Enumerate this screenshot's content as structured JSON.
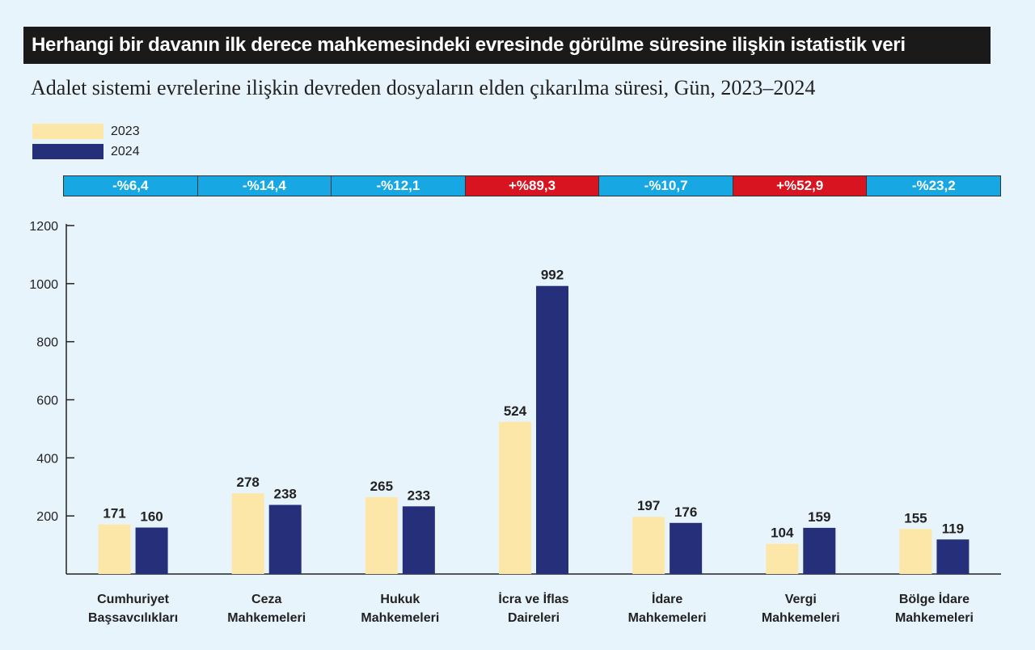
{
  "title": "Herhangi bir davanın ilk derece mahkemesindeki evresinde görülme süresine ilişkin istatistik veri",
  "subtitle": "Adalet sistemi evrelerine ilişkin devreden dosyaların elden çıkarılma süresi, Gün, 2023–2024",
  "colors": {
    "series_2023": "#fde7a8",
    "series_2024": "#262f7a",
    "decrease": "#17a8e3",
    "increase": "#d7141f"
  },
  "chart_data": {
    "type": "bar",
    "title": "Adalet sistemi evrelerine ilişkin devreden dosyaların elden çıkarılma süresi, Gün, 2023–2024",
    "categories": [
      [
        "Cumhuriyet",
        "Başsavcılıkları"
      ],
      [
        "Ceza",
        "Mahkemeleri"
      ],
      [
        "Hukuk",
        "Mahkemeleri"
      ],
      [
        "İcra ve İflas",
        "Daireleri"
      ],
      [
        "İdare",
        "Mahkemeleri"
      ],
      [
        "Vergi",
        "Mahkemeleri"
      ],
      [
        "Bölge İdare",
        "Mahkemeleri"
      ]
    ],
    "series": [
      {
        "name": "2023",
        "values": [
          171,
          278,
          265,
          524,
          197,
          104,
          155
        ]
      },
      {
        "name": "2024",
        "values": [
          160,
          238,
          233,
          992,
          176,
          159,
          119
        ]
      }
    ],
    "changes": [
      {
        "label": "-%6,4",
        "direction": "down"
      },
      {
        "label": "-%14,4",
        "direction": "down"
      },
      {
        "label": "-%12,1",
        "direction": "down"
      },
      {
        "label": "+%89,3",
        "direction": "up"
      },
      {
        "label": "-%10,7",
        "direction": "down"
      },
      {
        "label": "+%52,9",
        "direction": "up"
      },
      {
        "label": "-%23,2",
        "direction": "down"
      }
    ],
    "yticks": [
      200,
      400,
      600,
      800,
      1000,
      1200
    ],
    "ylim": [
      0,
      1200
    ],
    "legend_position": "top-left",
    "grid": false
  }
}
